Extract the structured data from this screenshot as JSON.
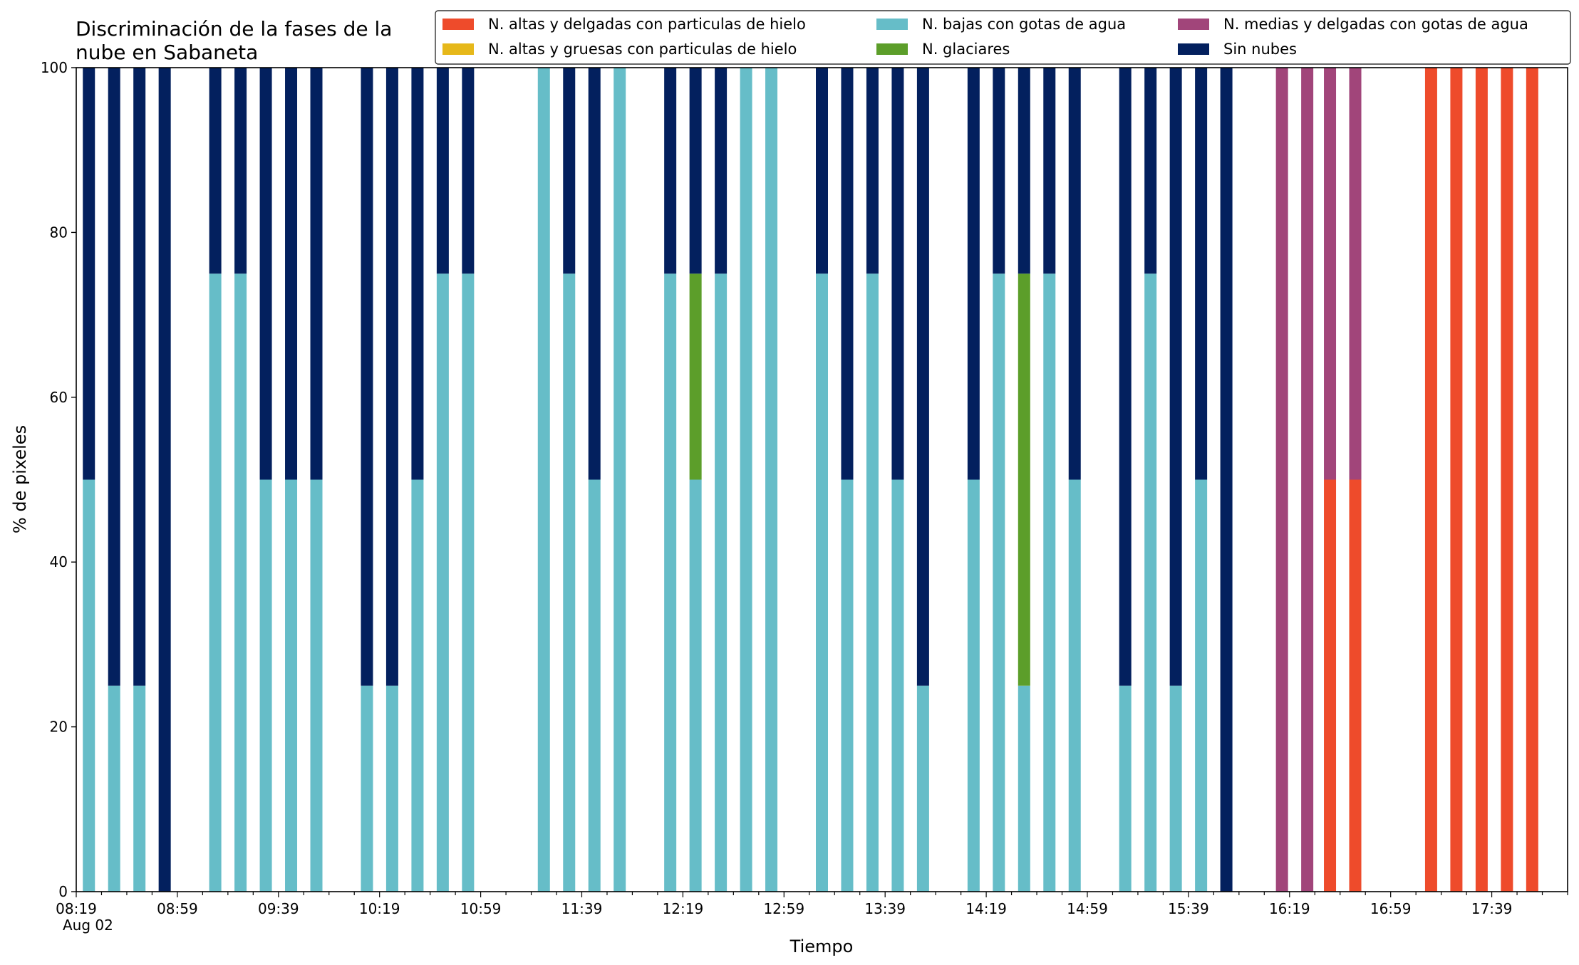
{
  "chart_data": {
    "type": "bar",
    "stacked": true,
    "title_lines": [
      "Discriminación de la fases de la",
      "nube en Sabaneta"
    ],
    "xlabel": "Tiempo",
    "ylabel": "% de pixeles",
    "ylim": [
      0,
      100
    ],
    "yticks": [
      0,
      20,
      40,
      60,
      80,
      100
    ],
    "date_label": "Aug 02",
    "time_start": "08:19",
    "time_end": "18:09",
    "major_ticks": [
      "08:19",
      "08:59",
      "09:39",
      "10:19",
      "10:59",
      "11:39",
      "12:19",
      "12:59",
      "13:39",
      "14:19",
      "14:59",
      "15:39",
      "16:19",
      "16:59",
      "17:39"
    ],
    "minor_tick_step_minutes": 10,
    "grid": false,
    "legend_position": "top-right",
    "series": [
      {
        "name": "N. altas y delgadas con particulas de hielo",
        "color": "#ee4b2b"
      },
      {
        "name": "N. altas y gruesas con particulas de hielo",
        "color": "#e6b81a"
      },
      {
        "name": "N. bajas con gotas de agua",
        "color": "#66bdc8"
      },
      {
        "name": "N. glaciares",
        "color": "#5c9e2a"
      },
      {
        "name": "N. medias y delgadas con gotas de agua",
        "color": "#a1457a"
      },
      {
        "name": "Sin nubes",
        "color": "#03205e"
      }
    ],
    "stack_order": [
      "N. altas y delgadas con particulas de hielo",
      "N. altas y gruesas con particulas de hielo",
      "N. bajas con gotas de agua",
      "N. glaciares",
      "N. medias y delgadas con gotas de agua",
      "Sin nubes"
    ],
    "bars": [
      {
        "time": "08:24",
        "values": [
          0,
          0,
          50,
          0,
          0,
          50
        ]
      },
      {
        "time": "08:34",
        "values": [
          0,
          0,
          25,
          0,
          0,
          75
        ]
      },
      {
        "time": "08:44",
        "values": [
          0,
          0,
          25,
          0,
          0,
          75
        ]
      },
      {
        "time": "08:54",
        "values": [
          0,
          0,
          0,
          0,
          0,
          100
        ]
      },
      {
        "time": "09:14",
        "values": [
          0,
          0,
          75,
          0,
          0,
          25
        ]
      },
      {
        "time": "09:24",
        "values": [
          0,
          0,
          75,
          0,
          0,
          25
        ]
      },
      {
        "time": "09:34",
        "values": [
          0,
          0,
          50,
          0,
          0,
          50
        ]
      },
      {
        "time": "09:44",
        "values": [
          0,
          0,
          50,
          0,
          0,
          50
        ]
      },
      {
        "time": "09:54",
        "values": [
          0,
          0,
          50,
          0,
          0,
          50
        ]
      },
      {
        "time": "10:14",
        "values": [
          0,
          0,
          25,
          0,
          0,
          75
        ]
      },
      {
        "time": "10:24",
        "values": [
          0,
          0,
          25,
          0,
          0,
          75
        ]
      },
      {
        "time": "10:34",
        "values": [
          0,
          0,
          50,
          0,
          0,
          50
        ]
      },
      {
        "time": "10:44",
        "values": [
          0,
          0,
          75,
          0,
          0,
          25
        ]
      },
      {
        "time": "10:54",
        "values": [
          0,
          0,
          75,
          0,
          0,
          25
        ]
      },
      {
        "time": "11:24",
        "values": [
          0,
          0,
          100,
          0,
          0,
          0
        ]
      },
      {
        "time": "11:34",
        "values": [
          0,
          0,
          75,
          0,
          0,
          25
        ]
      },
      {
        "time": "11:44",
        "values": [
          0,
          0,
          50,
          0,
          0,
          50
        ]
      },
      {
        "time": "11:54",
        "values": [
          0,
          0,
          100,
          0,
          0,
          0
        ]
      },
      {
        "time": "12:14",
        "values": [
          0,
          0,
          75,
          0,
          0,
          25
        ]
      },
      {
        "time": "12:24",
        "values": [
          0,
          0,
          50,
          25,
          0,
          25
        ]
      },
      {
        "time": "12:34",
        "values": [
          0,
          0,
          75,
          0,
          0,
          25
        ]
      },
      {
        "time": "12:44",
        "values": [
          0,
          0,
          100,
          0,
          0,
          0
        ]
      },
      {
        "time": "12:54",
        "values": [
          0,
          0,
          100,
          0,
          0,
          0
        ]
      },
      {
        "time": "13:14",
        "values": [
          0,
          0,
          75,
          0,
          0,
          25
        ]
      },
      {
        "time": "13:24",
        "values": [
          0,
          0,
          50,
          0,
          0,
          50
        ]
      },
      {
        "time": "13:34",
        "values": [
          0,
          0,
          75,
          0,
          0,
          25
        ]
      },
      {
        "time": "13:44",
        "values": [
          0,
          0,
          50,
          0,
          0,
          50
        ]
      },
      {
        "time": "13:54",
        "values": [
          0,
          0,
          25,
          0,
          0,
          75
        ]
      },
      {
        "time": "14:14",
        "values": [
          0,
          0,
          50,
          0,
          0,
          50
        ]
      },
      {
        "time": "14:24",
        "values": [
          0,
          0,
          75,
          0,
          0,
          25
        ]
      },
      {
        "time": "14:34",
        "values": [
          0,
          0,
          25,
          50,
          0,
          25
        ]
      },
      {
        "time": "14:44",
        "values": [
          0,
          0,
          75,
          0,
          0,
          25
        ]
      },
      {
        "time": "14:54",
        "values": [
          0,
          0,
          50,
          0,
          0,
          50
        ]
      },
      {
        "time": "15:14",
        "values": [
          0,
          0,
          25,
          0,
          0,
          75
        ]
      },
      {
        "time": "15:24",
        "values": [
          0,
          0,
          75,
          0,
          0,
          25
        ]
      },
      {
        "time": "15:34",
        "values": [
          0,
          0,
          25,
          0,
          0,
          75
        ]
      },
      {
        "time": "15:44",
        "values": [
          0,
          0,
          50,
          0,
          0,
          50
        ]
      },
      {
        "time": "15:54",
        "values": [
          0,
          0,
          0,
          0,
          0,
          100
        ]
      },
      {
        "time": "16:16",
        "values": [
          0,
          0,
          0,
          0,
          100,
          0
        ]
      },
      {
        "time": "16:26",
        "values": [
          0,
          0,
          0,
          0,
          100,
          0
        ]
      },
      {
        "time": "16:35",
        "values": [
          50,
          0,
          0,
          0,
          50,
          0
        ]
      },
      {
        "time": "16:45",
        "values": [
          50,
          0,
          0,
          0,
          50,
          0
        ]
      },
      {
        "time": "17:15",
        "values": [
          100,
          0,
          0,
          0,
          0,
          0
        ]
      },
      {
        "time": "17:25",
        "values": [
          100,
          0,
          0,
          0,
          0,
          0
        ]
      },
      {
        "time": "17:35",
        "values": [
          100,
          0,
          0,
          0,
          0,
          0
        ]
      },
      {
        "time": "17:45",
        "values": [
          100,
          0,
          0,
          0,
          0,
          0
        ]
      },
      {
        "time": "17:55",
        "values": [
          100,
          0,
          0,
          0,
          0,
          0
        ]
      }
    ]
  }
}
